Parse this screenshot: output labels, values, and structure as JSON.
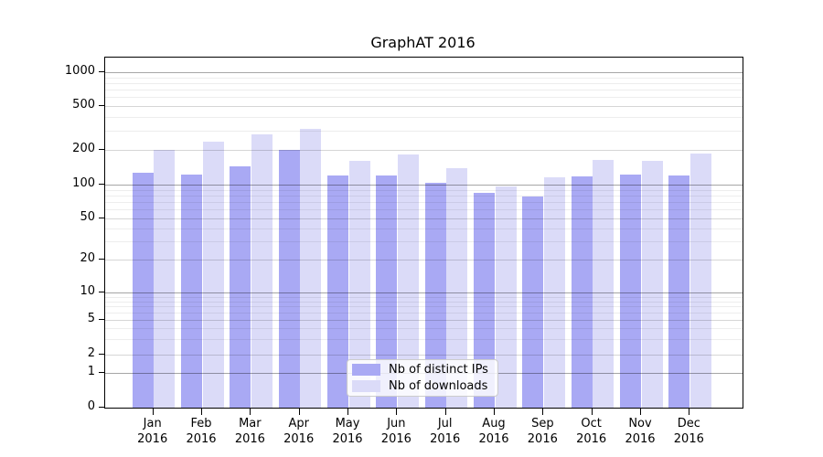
{
  "chart_data": {
    "type": "bar",
    "title": "GraphAT 2016",
    "scale": "symlog",
    "grid": true,
    "legend_position": "lower center",
    "ylim": [
      0,
      1360
    ],
    "y_ticks": [
      0,
      1,
      2,
      5,
      10,
      20,
      50,
      100,
      200,
      500,
      1000
    ],
    "y_minor_ticks": [
      3,
      4,
      6,
      7,
      8,
      9,
      30,
      40,
      60,
      70,
      80,
      90,
      300,
      400,
      600,
      700,
      800,
      900
    ],
    "categories": [
      "Jan",
      "Feb",
      "Mar",
      "Apr",
      "May",
      "Jun",
      "Jul",
      "Aug",
      "Sep",
      "Oct",
      "Nov",
      "Dec"
    ],
    "year_label": "2016",
    "series": [
      {
        "name": "Nb of distinct IPs",
        "color": "#a9a9f4",
        "values": [
          128,
          122,
          145,
          201,
          121,
          120,
          103,
          84,
          78,
          119,
          122,
          121
        ]
      },
      {
        "name": "Nb of downloads",
        "color": "#dbdbf8",
        "values": [
          200,
          237,
          280,
          311,
          162,
          185,
          140,
          96,
          116,
          163,
          161,
          186
        ]
      }
    ]
  }
}
